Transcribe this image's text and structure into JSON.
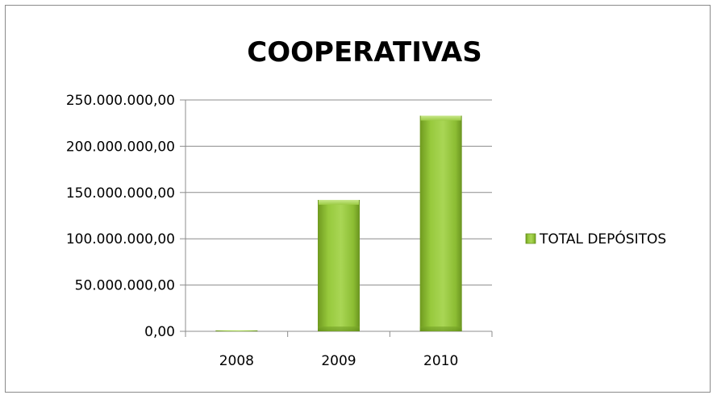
{
  "chart_data": {
    "type": "bar",
    "title": "COOPERATIVAS",
    "xlabel": "",
    "ylabel": "",
    "categories": [
      "2008",
      "2009",
      "2010"
    ],
    "series": [
      {
        "name": "TOTAL DEPÓSITOS",
        "values": [
          1000000,
          142000000,
          233000000
        ],
        "color": "#8dc232"
      }
    ],
    "ylim": [
      0,
      250000000
    ],
    "yticks": [
      0,
      50000000,
      100000000,
      150000000,
      200000000,
      250000000
    ],
    "ytick_labels": [
      "0,00",
      "50.000.000,00",
      "100.000.000,00",
      "150.000.000,00",
      "200.000.000,00",
      "250.000.000,00"
    ],
    "grid": true,
    "legend_position": "right"
  }
}
